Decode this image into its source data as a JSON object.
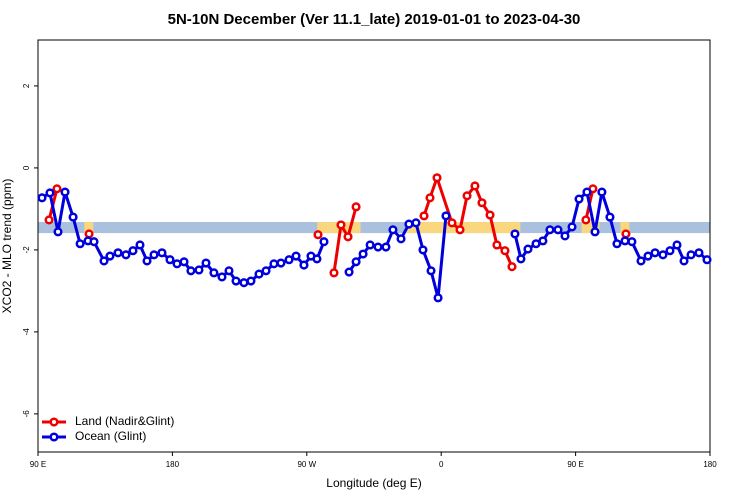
{
  "chart_data": {
    "type": "line",
    "title": "5N-10N December (Ver 11.1_late)   2019-01-01 to 2023-04-30",
    "xlabel": "Longitude (deg E)",
    "ylabel": "XCO2 - MLO trend (ppm)",
    "xlim": [
      90,
      540
    ],
    "ylim": [
      -6.93,
      3.12
    ],
    "xticks": [
      {
        "value": 90,
        "label": "90 E"
      },
      180,
      {
        "value": 270,
        "label": "90 W"
      },
      {
        "value": 360,
        "label": "0"
      },
      {
        "value": 450,
        "label": "90 E"
      },
      {
        "value": 540,
        "label": "180"
      }
    ],
    "yticks": [
      -6,
      -4,
      -2,
      0,
      2
    ],
    "band": {
      "ymin": -1.59,
      "ymax": -1.32,
      "color": "#a9c1de"
    },
    "highlight_color": "#f9d77e",
    "highlight_ranges": [
      [
        121,
        127
      ],
      [
        277,
        306
      ],
      [
        336,
        413
      ],
      [
        454,
        466
      ],
      [
        480,
        486
      ]
    ],
    "legend": "lower left",
    "series": [
      {
        "name": "Land (Nadir&Glint)",
        "color": "#ee0000",
        "x": [
          97.4,
          102.7,
          115,
          124.2,
          200,
          277.5,
          282,
          288.2,
          292.9,
          297.6,
          303.0,
          320,
          348.5,
          352.5,
          357.2,
          367.2,
          372.6,
          377.3,
          382.6,
          387.3,
          392.7,
          397.3,
          402.7,
          407.4,
          430,
          456.9,
          461.6,
          470,
          483.7
        ],
        "values": [
          -1.27,
          -0.51,
          null,
          -1.61,
          null,
          -1.63,
          null,
          -2.56,
          -1.39,
          -1.68,
          -0.95,
          null,
          -1.17,
          -0.73,
          -0.24,
          -1.34,
          -1.51,
          -0.68,
          -0.44,
          -0.85,
          -1.15,
          -1.88,
          -2.02,
          -2.41,
          null,
          -1.27,
          -0.51,
          null,
          -1.61
        ]
      },
      {
        "name": "Ocean (Glint)",
        "color": "#0000dd",
        "x": [
          92.7,
          98.0,
          103.4,
          108.1,
          113.5,
          118.2,
          123.5,
          127.5,
          134.2,
          138.2,
          143.6,
          148.9,
          153.6,
          158.3,
          163.0,
          167.7,
          173.0,
          178.4,
          183.1,
          187.8,
          192.4,
          197.8,
          202.5,
          207.8,
          213.2,
          217.9,
          222.6,
          227.9,
          232.6,
          238.0,
          242.7,
          248.0,
          252.7,
          258.1,
          262.8,
          268.1,
          272.8,
          276.8,
          281.5,
          290,
          298.3,
          303.0,
          307.7,
          312.4,
          317.7,
          323.0,
          327.7,
          333.1,
          338.4,
          343.1,
          347.8,
          353.2,
          357.9,
          363.2,
          386,
          409.4,
          413.4,
          418.1,
          423.5,
          428.1,
          432.8,
          438.2,
          442.9,
          447.6,
          452.3,
          457.6,
          463.0,
          467.6,
          473.0,
          477.7,
          483.1,
          487.7,
          493.8,
          498.5,
          503.2,
          508.5,
          513.2,
          517.9,
          522.6,
          527.3,
          532.6,
          538.0
        ],
        "values": [
          -0.73,
          -0.61,
          -1.56,
          -0.59,
          -1.2,
          -1.85,
          -1.78,
          -1.8,
          -2.27,
          -2.15,
          -2.07,
          -2.12,
          -2.02,
          -1.88,
          -2.27,
          -2.12,
          -2.07,
          -2.24,
          -2.34,
          -2.29,
          -2.51,
          -2.49,
          -2.32,
          -2.56,
          -2.66,
          -2.51,
          -2.76,
          -2.8,
          -2.76,
          -2.59,
          -2.51,
          -2.34,
          -2.32,
          -2.24,
          -2.15,
          -2.37,
          -2.15,
          -2.22,
          -1.8,
          null,
          -2.54,
          -2.29,
          -2.1,
          -1.88,
          -1.93,
          -1.93,
          -1.51,
          -1.73,
          -1.37,
          -1.34,
          -2.0,
          -2.51,
          -3.17,
          -1.17,
          null,
          -1.61,
          -2.22,
          -1.98,
          -1.85,
          -1.78,
          -1.51,
          -1.51,
          -1.66,
          -1.44,
          -0.76,
          -0.59,
          -1.56,
          -0.59,
          -1.2,
          -1.85,
          -1.78,
          -1.8,
          -2.27,
          -2.15,
          -2.07,
          -2.12,
          -2.02,
          -1.88,
          -2.27,
          -2.12,
          -2.07,
          -2.24
        ]
      }
    ]
  }
}
